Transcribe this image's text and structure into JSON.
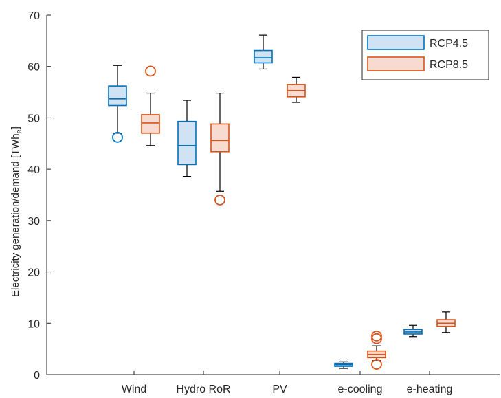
{
  "chart_data": {
    "type": "boxplot",
    "ylabel": "Electricity generation/demand [TWh",
    "ylabel_sub": "e",
    "ylabel_end": "]",
    "ylim": [
      0,
      70
    ],
    "yticks": [
      "0",
      "10",
      "20",
      "30",
      "40",
      "50",
      "60",
      "70"
    ],
    "categories": [
      "Wind",
      "Hydro RoR",
      "PV",
      "e-cooling",
      "e-heating"
    ],
    "legend_position": "top-right",
    "series": [
      {
        "name": "RCP4.5",
        "color": "#0072BD",
        "fill": "#CFE3F4",
        "boxes": [
          {
            "category": "Wind",
            "whisker_low": 47,
            "q1": 52.4,
            "median": 53.7,
            "q3": 56.2,
            "whisker_high": 60.2,
            "outliers": [
              46.2
            ]
          },
          {
            "category": "Hydro RoR",
            "whisker_low": 38.6,
            "q1": 40.9,
            "median": 44.6,
            "q3": 49.3,
            "whisker_high": 53.4,
            "outliers": []
          },
          {
            "category": "PV",
            "whisker_low": 59.5,
            "q1": 60.7,
            "median": 61.7,
            "q3": 63.1,
            "whisker_high": 66.1,
            "outliers": []
          },
          {
            "category": "e-cooling",
            "whisker_low": 1.2,
            "q1": 1.6,
            "median": 1.9,
            "q3": 2.2,
            "whisker_high": 2.5,
            "outliers": []
          },
          {
            "category": "e-heating",
            "whisker_low": 7.4,
            "q1": 7.9,
            "median": 8.3,
            "q3": 8.8,
            "whisker_high": 9.6,
            "outliers": []
          }
        ]
      },
      {
        "name": "RCP8.5",
        "color": "#D95319",
        "fill": "#F7DBD0",
        "boxes": [
          {
            "category": "Wind",
            "whisker_low": 44.6,
            "q1": 47.0,
            "median": 49.0,
            "q3": 50.6,
            "whisker_high": 54.8,
            "outliers": [
              59.1
            ]
          },
          {
            "category": "Hydro RoR",
            "whisker_low": 35.7,
            "q1": 43.4,
            "median": 45.6,
            "q3": 48.8,
            "whisker_high": 54.8,
            "outliers": [
              34.0
            ]
          },
          {
            "category": "PV",
            "whisker_low": 53.0,
            "q1": 54.1,
            "median": 55.3,
            "q3": 56.5,
            "whisker_high": 57.9,
            "outliers": []
          },
          {
            "category": "e-cooling",
            "whisker_low": 2.8,
            "q1": 3.3,
            "median": 3.9,
            "q3": 4.6,
            "whisker_high": 5.6,
            "outliers": [
              7.0,
              7.5,
              2.0
            ]
          },
          {
            "category": "e-heating",
            "whisker_low": 8.2,
            "q1": 9.4,
            "median": 10.0,
            "q3": 10.7,
            "whisker_high": 12.2,
            "outliers": []
          }
        ]
      }
    ]
  }
}
